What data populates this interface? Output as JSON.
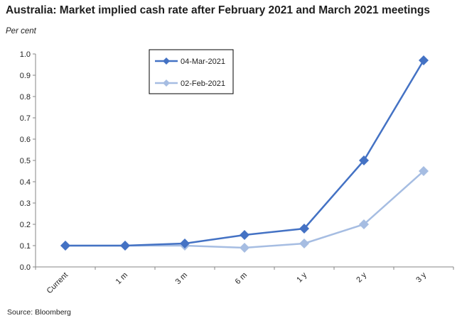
{
  "title": "Australia: Market implied cash rate after February 2021 and March 2021 meetings",
  "ylabel": "Per cent",
  "source": "Source: Bloomberg",
  "chart_data": {
    "type": "line",
    "categories": [
      "Current",
      "1 m",
      "3 m",
      "6 m",
      "1 y",
      "2 y",
      "3 y"
    ],
    "ylim": [
      0,
      1.0
    ],
    "yticks": [
      0.0,
      0.1,
      0.2,
      0.3,
      0.4,
      0.5,
      0.6,
      0.7,
      0.8,
      0.9,
      1.0
    ],
    "ytick_labels": [
      "0.0",
      "0.1",
      "0.2",
      "0.3",
      "0.4",
      "0.5",
      "0.6",
      "0.7",
      "0.8",
      "0.9",
      "1.0"
    ],
    "grid": false,
    "legend_position": "top-center",
    "series": [
      {
        "name": "02-Feb-2021",
        "color": "#a6bde2",
        "values": [
          0.1,
          0.1,
          0.1,
          0.09,
          0.11,
          0.2,
          0.45
        ]
      },
      {
        "name": "04-Mar-2021",
        "color": "#4472c4",
        "values": [
          0.1,
          0.1,
          0.11,
          0.15,
          0.18,
          0.5,
          0.97
        ]
      }
    ],
    "legend_order": [
      1,
      0
    ]
  }
}
